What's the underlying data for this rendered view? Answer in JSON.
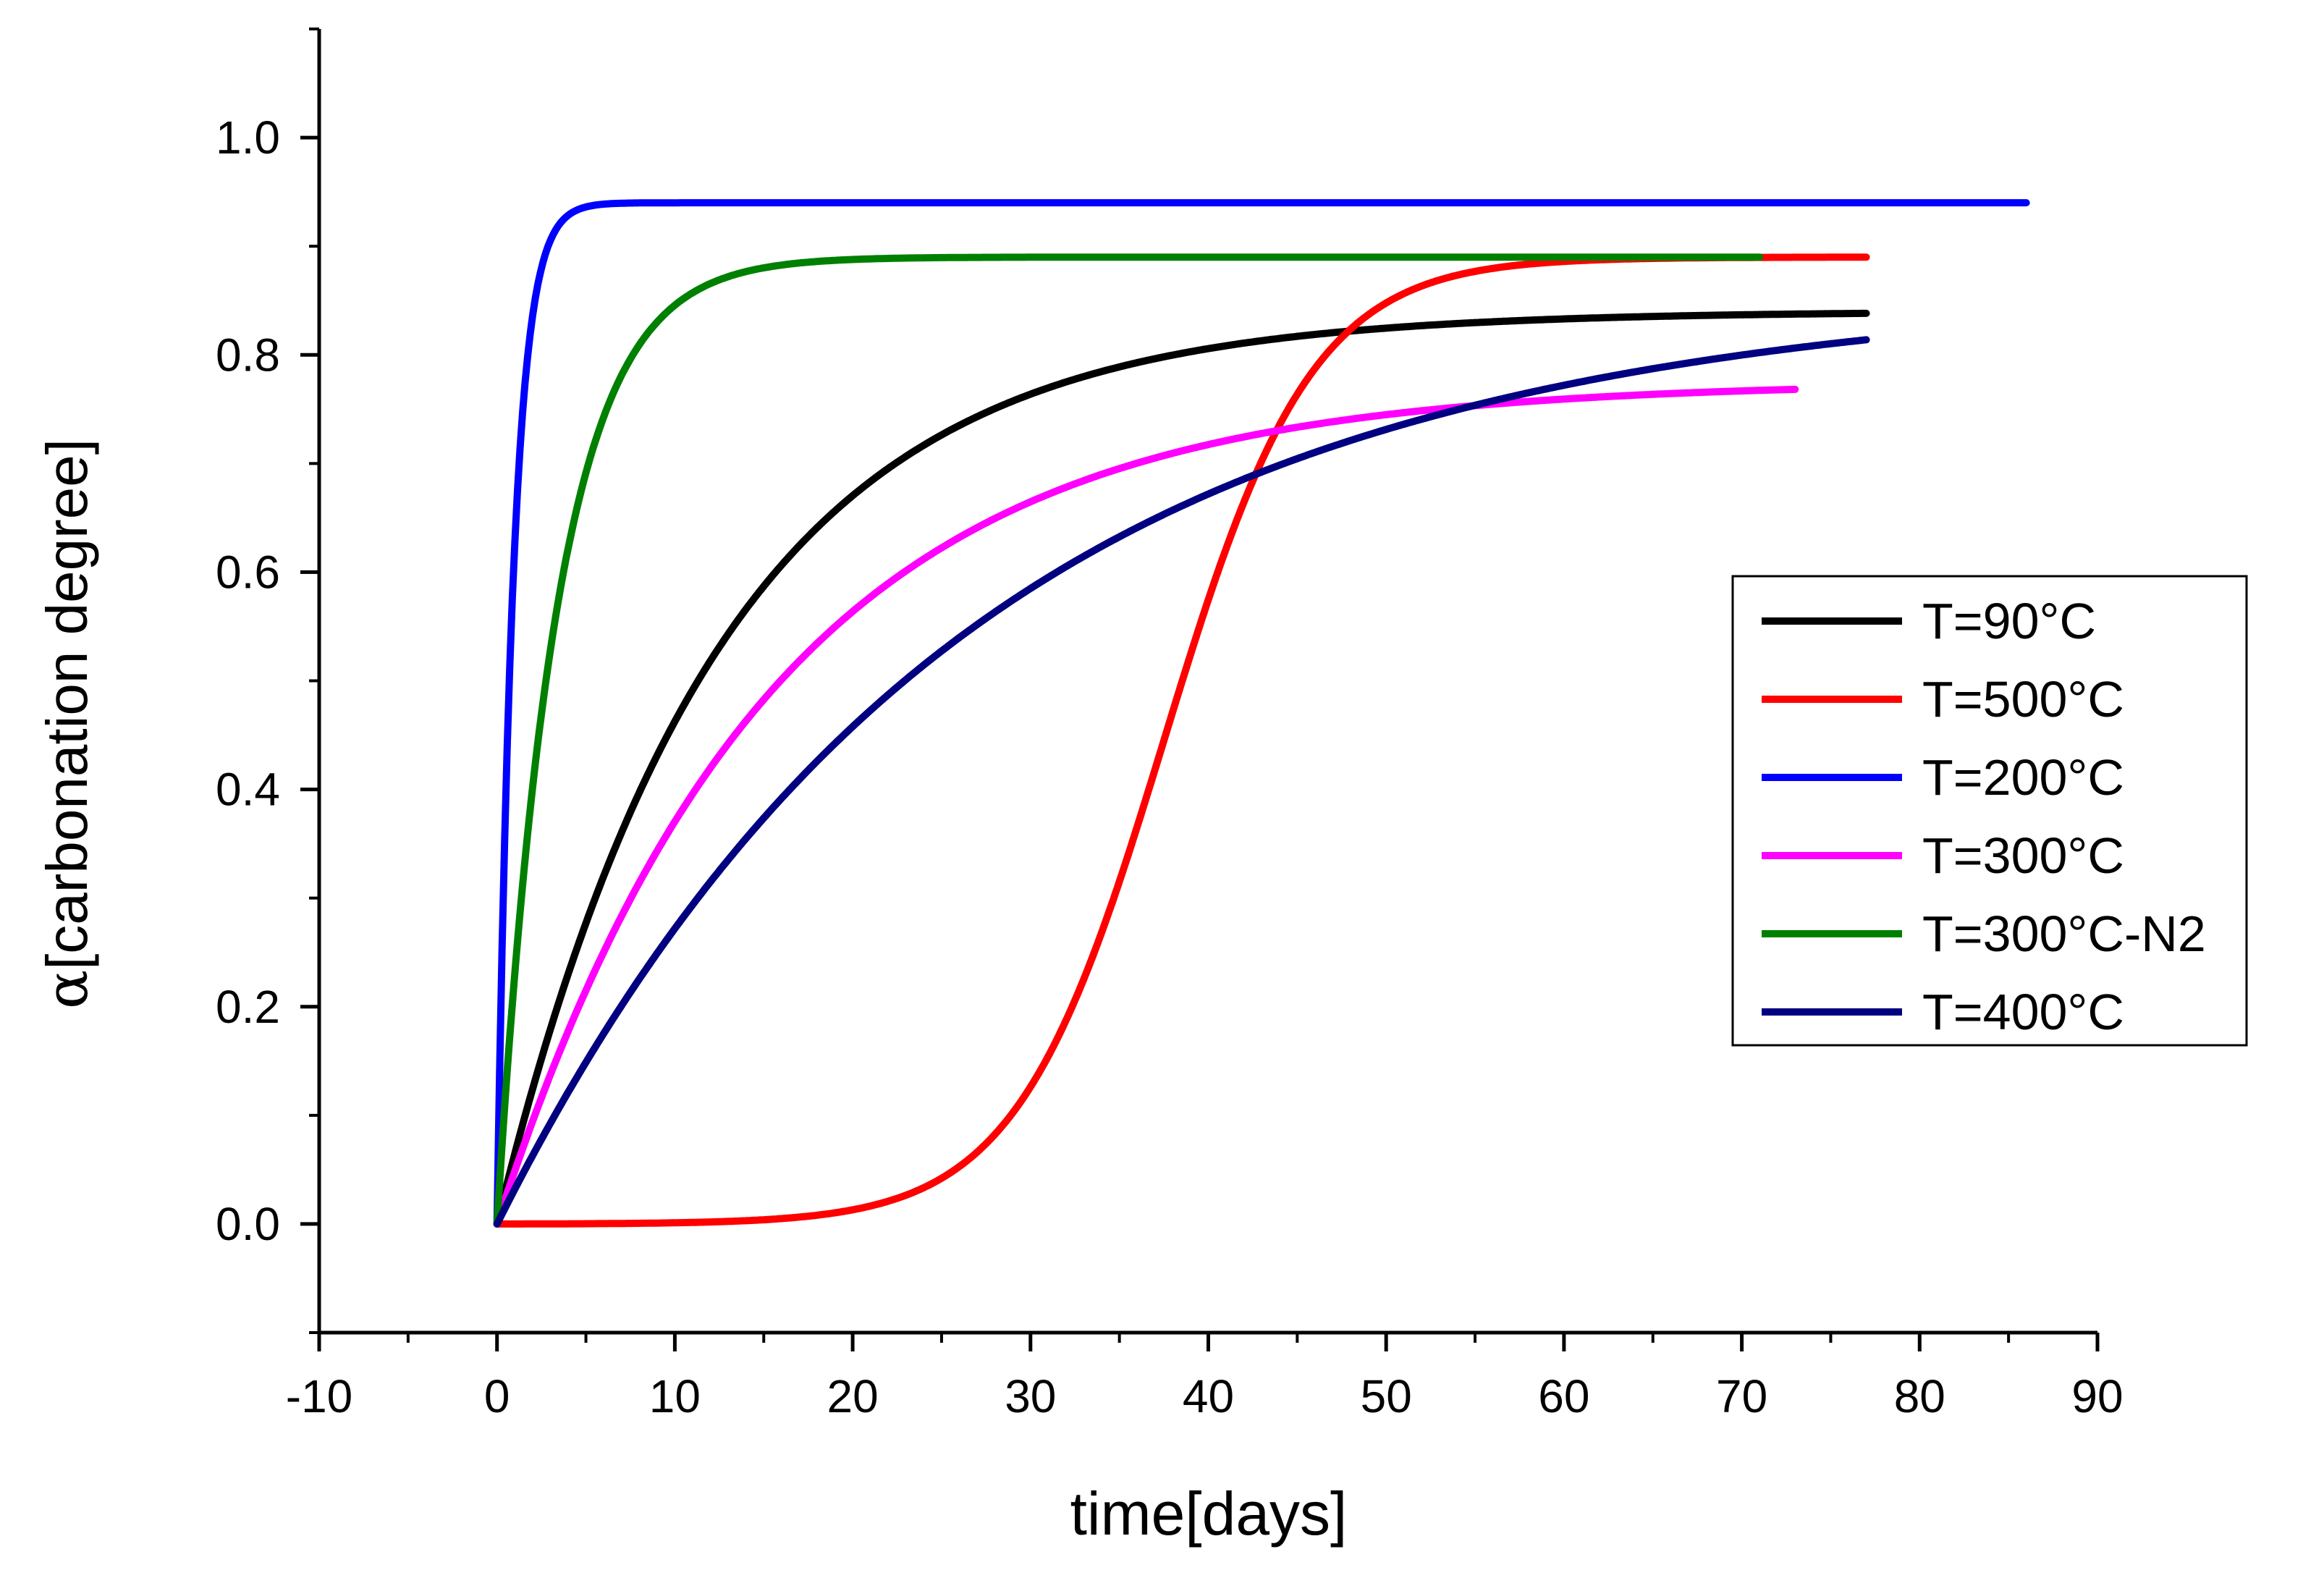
{
  "chart_data": {
    "type": "line",
    "title": "",
    "xlabel": "time[days]",
    "ylabel_symbol": "α",
    "ylabel_text": "[carbonation degree]",
    "xlim": [
      -10,
      90
    ],
    "ylim": [
      -0.1,
      1.1
    ],
    "x_ticks": [
      -10,
      0,
      10,
      20,
      30,
      40,
      50,
      60,
      70,
      80,
      90
    ],
    "x_tick_labels": [
      "-10",
      "0",
      "10",
      "20",
      "30",
      "40",
      "50",
      "60",
      "70",
      "80",
      "90"
    ],
    "y_ticks": [
      0.0,
      0.2,
      0.4,
      0.6,
      0.8,
      1.0
    ],
    "y_tick_labels": [
      "0.0",
      "0.2",
      "0.4",
      "0.6",
      "0.8",
      "1.0"
    ],
    "grid": false,
    "legend_position": "center-right",
    "series": [
      {
        "name": "T=90°C",
        "color": "#000000",
        "model": "exp",
        "a": 0.84,
        "k": 0.08,
        "x_end": 77
      },
      {
        "name": "T=500°C",
        "color": "#ff0000",
        "model": "logistic",
        "a": 0.89,
        "r": 0.24,
        "x0": 37.5,
        "x_end": 77
      },
      {
        "name": "T=200°C",
        "color": "#0000ff",
        "model": "exp",
        "a": 0.94,
        "k": 1.1,
        "x_end": 86
      },
      {
        "name": "T=300°C",
        "color": "#ff00ff",
        "model": "exp",
        "a": 0.775,
        "k": 0.065,
        "x_end": 73
      },
      {
        "name": "T=300°C-N2",
        "color": "#008000",
        "model": "exp",
        "a": 0.89,
        "k": 0.3,
        "x_end": 71
      },
      {
        "name": "T=400°C",
        "color": "#000080",
        "model": "exp",
        "a": 0.86,
        "k": 0.038,
        "x_end": 77
      }
    ]
  }
}
